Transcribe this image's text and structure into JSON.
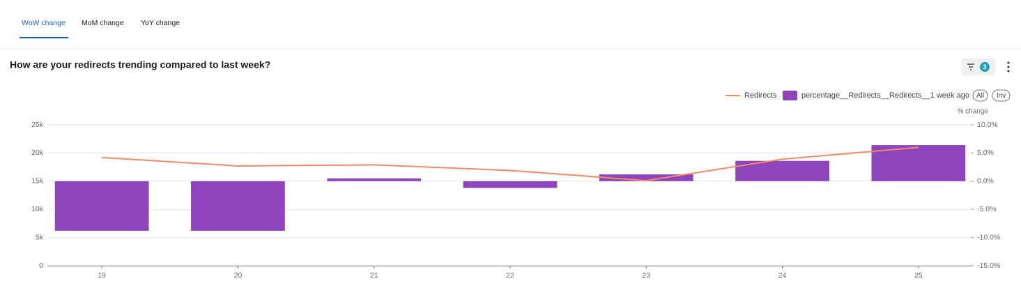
{
  "tabs": [
    "WoW change",
    "MoM change",
    "YoY change"
  ],
  "filter_count": "3",
  "legend_buttons": [
    "All",
    "Inv"
  ],
  "chart_data": {
    "type": "combo",
    "title": "How are your redirects trending compared to last week?",
    "y2_label": "% change",
    "categories": [
      "19",
      "20",
      "21",
      "22",
      "23",
      "24",
      "25"
    ],
    "series": [
      {
        "name": "Redirects",
        "type": "line",
        "color": "#f28b66",
        "axis": "y",
        "values": [
          19200,
          17700,
          17900,
          16900,
          15100,
          18900,
          21000
        ]
      },
      {
        "name": "percentage__Redirects__Redirects__1 week ago",
        "type": "bar",
        "color": "#8e44bd",
        "axis": "y2",
        "values": [
          -8.8,
          -8.8,
          0.5,
          -1.2,
          1.2,
          3.6,
          6.4
        ]
      }
    ],
    "ylim": [
      0,
      25000
    ],
    "yticks": [
      {
        "value": 0,
        "label": "0"
      },
      {
        "value": 5000,
        "label": "5k"
      },
      {
        "value": 10000,
        "label": "10k"
      },
      {
        "value": 15000,
        "label": "15k"
      },
      {
        "value": 20000,
        "label": "20k"
      },
      {
        "value": 25000,
        "label": "25k"
      }
    ],
    "y2lim": [
      -15,
      10
    ],
    "y2ticks": [
      {
        "value": -15,
        "label": "-15.0%"
      },
      {
        "value": -10,
        "label": "-10.0%"
      },
      {
        "value": -5,
        "label": "-5.0%"
      },
      {
        "value": 0,
        "label": "0.0%"
      },
      {
        "value": 5,
        "label": "5.0%"
      },
      {
        "value": 10,
        "label": "10.0%"
      }
    ],
    "grid": true
  }
}
